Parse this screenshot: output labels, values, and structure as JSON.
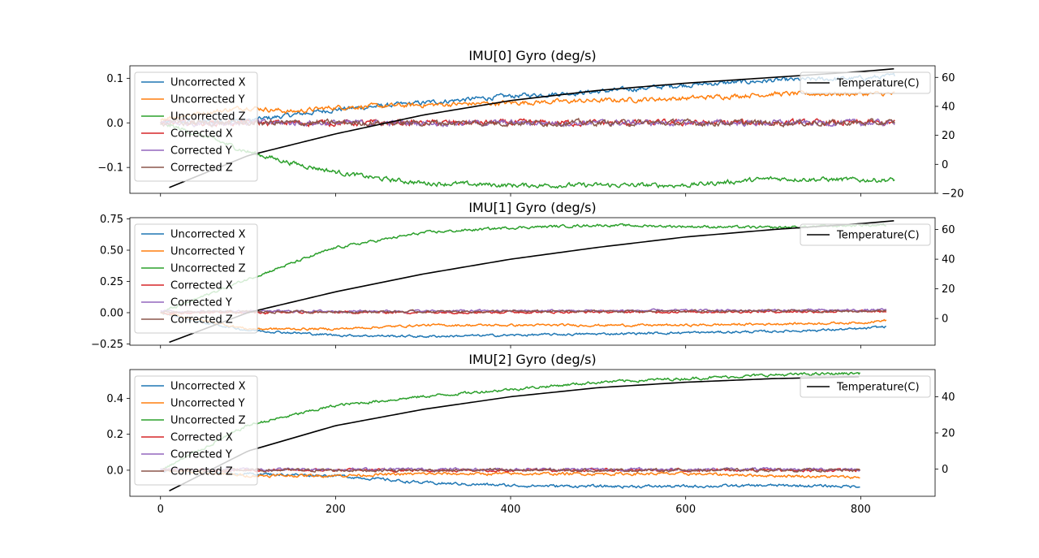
{
  "chart_data": [
    {
      "type": "line",
      "title": "IMU[0] Gyro (deg/s)",
      "xlim": [
        -35,
        885
      ],
      "ylim": [
        -0.158,
        0.128
      ],
      "y2lim": [
        -20,
        68
      ],
      "xticks": [
        0,
        200,
        400,
        600,
        800
      ],
      "yticks": [
        -0.1,
        0.0,
        0.1
      ],
      "ytick_labels": [
        "−0.1",
        "0.0",
        "0.1"
      ],
      "y2ticks": [
        -20,
        0,
        20,
        40,
        60
      ],
      "y2tick_labels": [
        "−20",
        "0",
        "20",
        "40",
        "60"
      ],
      "legend_placement": "upper-left",
      "legend2_placement": "upper-right",
      "series": [
        {
          "name": "Uncorrected X",
          "color": "#1f77b4",
          "noise": 0.004,
          "x": [
            0,
            100,
            200,
            300,
            400,
            500,
            600,
            700,
            800,
            840
          ],
          "values": [
            0.0,
            0.005,
            0.03,
            0.045,
            0.06,
            0.07,
            0.085,
            0.095,
            0.1,
            0.105
          ]
        },
        {
          "name": "Uncorrected Y",
          "color": "#ff7f0e",
          "noise": 0.004,
          "x": [
            0,
            100,
            150,
            200,
            300,
            400,
            500,
            600,
            700,
            800,
            840
          ],
          "values": [
            0.01,
            0.035,
            0.025,
            0.035,
            0.04,
            0.045,
            0.05,
            0.055,
            0.065,
            0.065,
            0.065
          ]
        },
        {
          "name": "Uncorrected Z",
          "color": "#2ca02c",
          "noise": 0.004,
          "x": [
            0,
            50,
            100,
            150,
            200,
            250,
            300,
            400,
            500,
            600,
            700,
            800,
            840
          ],
          "values": [
            0.0,
            -0.03,
            -0.065,
            -0.09,
            -0.11,
            -0.125,
            -0.135,
            -0.14,
            -0.14,
            -0.14,
            -0.125,
            -0.128,
            -0.128
          ]
        },
        {
          "name": "Corrected X",
          "color": "#d62728",
          "noise": 0.005,
          "x": [
            0,
            840
          ],
          "values": [
            0.0,
            0.0
          ]
        },
        {
          "name": "Corrected Y",
          "color": "#9467bd",
          "noise": 0.005,
          "x": [
            0,
            840
          ],
          "values": [
            0.0,
            0.0
          ]
        },
        {
          "name": "Corrected Z",
          "color": "#8c564b",
          "noise": 0.005,
          "x": [
            0,
            840
          ],
          "values": [
            0.0,
            0.0
          ]
        }
      ],
      "axis2_series": [
        {
          "name": "Temperature(C)",
          "color": "#000000",
          "x": [
            10,
            100,
            200,
            300,
            400,
            500,
            600,
            700,
            800,
            840
          ],
          "values": [
            -16,
            6,
            21,
            34,
            44,
            51,
            56,
            60,
            64,
            66
          ]
        }
      ]
    },
    {
      "type": "line",
      "title": "IMU[1] Gyro (deg/s)",
      "xlim": [
        -35,
        885
      ],
      "ylim": [
        -0.26,
        0.76
      ],
      "y2lim": [
        -18,
        68
      ],
      "xticks": [
        0,
        200,
        400,
        600,
        800
      ],
      "yticks": [
        -0.25,
        0.0,
        0.25,
        0.5,
        0.75
      ],
      "ytick_labels": [
        "−0.25",
        "0.00",
        "0.25",
        "0.50",
        "0.75"
      ],
      "y2ticks": [
        0,
        20,
        40,
        60
      ],
      "y2tick_labels": [
        "0",
        "20",
        "40",
        "60"
      ],
      "legend_placement": "upper-left",
      "legend2_placement": "upper-right",
      "series": [
        {
          "name": "Uncorrected X",
          "color": "#1f77b4",
          "noise": 0.007,
          "x": [
            0,
            50,
            100,
            200,
            300,
            400,
            500,
            600,
            700,
            800,
            830
          ],
          "values": [
            0.0,
            -0.08,
            -0.14,
            -0.18,
            -0.19,
            -0.18,
            -0.17,
            -0.16,
            -0.15,
            -0.13,
            -0.11
          ]
        },
        {
          "name": "Uncorrected Y",
          "color": "#ff7f0e",
          "noise": 0.007,
          "x": [
            0,
            100,
            200,
            300,
            400,
            500,
            600,
            700,
            800,
            830
          ],
          "values": [
            0.0,
            -0.13,
            -0.13,
            -0.1,
            -0.1,
            -0.1,
            -0.1,
            -0.09,
            -0.08,
            -0.06
          ]
        },
        {
          "name": "Uncorrected Z",
          "color": "#2ca02c",
          "noise": 0.008,
          "x": [
            0,
            100,
            200,
            300,
            400,
            500,
            600,
            700,
            800,
            830
          ],
          "values": [
            0.0,
            0.27,
            0.52,
            0.64,
            0.68,
            0.7,
            0.69,
            0.68,
            0.7,
            0.7
          ]
        },
        {
          "name": "Corrected X",
          "color": "#d62728",
          "noise": 0.007,
          "x": [
            0,
            830
          ],
          "values": [
            0.0,
            0.01
          ]
        },
        {
          "name": "Corrected Y",
          "color": "#9467bd",
          "noise": 0.007,
          "x": [
            0,
            830
          ],
          "values": [
            0.01,
            0.02
          ]
        },
        {
          "name": "Corrected Z",
          "color": "#8c564b",
          "noise": 0.007,
          "x": [
            0,
            830
          ],
          "values": [
            0.005,
            0.015
          ]
        }
      ],
      "axis2_series": [
        {
          "name": "Temperature(C)",
          "color": "#000000",
          "x": [
            10,
            100,
            200,
            300,
            400,
            500,
            600,
            700,
            800,
            840
          ],
          "values": [
            -16,
            4,
            18,
            30,
            40,
            48,
            55,
            60,
            64,
            66
          ]
        }
      ]
    },
    {
      "type": "line",
      "title": "IMU[2] Gyro (deg/s)",
      "xlim": [
        -35,
        885
      ],
      "ylim": [
        -0.145,
        0.56
      ],
      "y2lim": [
        -15,
        55
      ],
      "xticks": [
        0,
        200,
        400,
        600,
        800
      ],
      "xtick_labels": [
        "0",
        "200",
        "400",
        "600",
        "800"
      ],
      "yticks": [
        0.0,
        0.2,
        0.4
      ],
      "ytick_labels": [
        "0.0",
        "0.2",
        "0.4"
      ],
      "y2ticks": [
        0,
        20,
        40
      ],
      "y2tick_labels": [
        "0",
        "20",
        "40"
      ],
      "legend_placement": "upper-left",
      "legend2_placement": "upper-right",
      "series": [
        {
          "name": "Uncorrected X",
          "color": "#1f77b4",
          "noise": 0.006,
          "x": [
            0,
            100,
            200,
            300,
            400,
            500,
            600,
            700,
            800
          ],
          "values": [
            0.0,
            -0.02,
            -0.03,
            -0.07,
            -0.085,
            -0.09,
            -0.09,
            -0.085,
            -0.09
          ]
        },
        {
          "name": "Uncorrected Y",
          "color": "#ff7f0e",
          "noise": 0.006,
          "x": [
            0,
            100,
            200,
            300,
            400,
            500,
            600,
            700,
            800
          ],
          "values": [
            0.0,
            -0.03,
            -0.03,
            -0.02,
            -0.02,
            -0.02,
            -0.02,
            -0.03,
            -0.04
          ]
        },
        {
          "name": "Uncorrected Z",
          "color": "#2ca02c",
          "noise": 0.006,
          "x": [
            0,
            100,
            200,
            300,
            400,
            500,
            600,
            700,
            800
          ],
          "values": [
            0.0,
            0.25,
            0.36,
            0.41,
            0.45,
            0.49,
            0.51,
            0.53,
            0.54
          ]
        },
        {
          "name": "Corrected X",
          "color": "#d62728",
          "noise": 0.006,
          "x": [
            0,
            800
          ],
          "values": [
            0.0,
            0.0
          ]
        },
        {
          "name": "Corrected Y",
          "color": "#9467bd",
          "noise": 0.006,
          "x": [
            0,
            800
          ],
          "values": [
            0.005,
            0.005
          ]
        },
        {
          "name": "Corrected Z",
          "color": "#8c564b",
          "noise": 0.006,
          "x": [
            0,
            800
          ],
          "values": [
            0.0,
            0.0
          ]
        }
      ],
      "axis2_series": [
        {
          "name": "Temperature(C)",
          "color": "#000000",
          "x": [
            10,
            100,
            200,
            300,
            400,
            500,
            600,
            700,
            800
          ],
          "values": [
            -12,
            10,
            24,
            33,
            40,
            45,
            48,
            50,
            51
          ]
        }
      ]
    }
  ]
}
